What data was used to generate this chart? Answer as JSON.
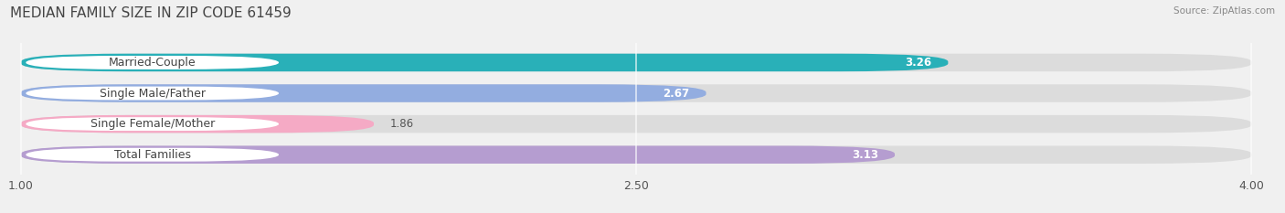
{
  "title": "MEDIAN FAMILY SIZE IN ZIP CODE 61459",
  "source": "Source: ZipAtlas.com",
  "categories": [
    "Married-Couple",
    "Single Male/Father",
    "Single Female/Mother",
    "Total Families"
  ],
  "values": [
    3.26,
    2.67,
    1.86,
    3.13
  ],
  "bar_colors": [
    "#29b0b8",
    "#93ade0",
    "#f5aac5",
    "#b59dd0"
  ],
  "label_pill_border_colors": [
    "#29b0b8",
    "#93ade0",
    "#f5aac5",
    "#b59dd0"
  ],
  "value_inside": [
    true,
    true,
    false,
    true
  ],
  "xmin": 1.0,
  "xmax": 4.0,
  "xticks": [
    1.0,
    2.5,
    4.0
  ],
  "xtick_labels": [
    "1.00",
    "2.50",
    "4.00"
  ],
  "background_color": "#f0f0f0",
  "bar_background_color": "#dcdcdc",
  "chart_bg_color": "#ffffff",
  "title_fontsize": 11,
  "tick_fontsize": 9,
  "label_fontsize": 9,
  "value_fontsize": 8.5,
  "bar_height": 0.58
}
